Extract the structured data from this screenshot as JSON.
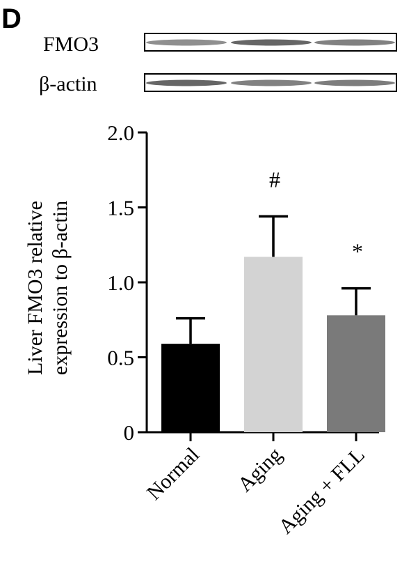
{
  "panel_label": "D",
  "blot": {
    "lanes": [
      {
        "label": "FMO3",
        "band_intensity": [
          0.62,
          0.85,
          0.7
        ]
      },
      {
        "label": "β-actin",
        "band_intensity": [
          0.85,
          0.7,
          0.72
        ]
      }
    ]
  },
  "chart_data": {
    "type": "bar",
    "categories": [
      "Normal",
      "Aging",
      "Aging + FLL"
    ],
    "values": [
      0.59,
      1.17,
      0.78
    ],
    "error_upper": [
      0.17,
      0.27,
      0.18
    ],
    "bar_colors": [
      "#000000",
      "#d3d3d3",
      "#7a7a7a"
    ],
    "significance": [
      "",
      "#",
      "*"
    ],
    "ylabel_lines": [
      "Liver FMO3 relative",
      "expression to β-actin"
    ],
    "ylim": [
      0,
      2.0
    ],
    "yticks": [
      0,
      0.5,
      1.0,
      1.5,
      2.0
    ],
    "ytick_labels": [
      "0",
      "0.5",
      "1.0",
      "1.5",
      "2.0"
    ],
    "grid": false,
    "legend": "none"
  }
}
